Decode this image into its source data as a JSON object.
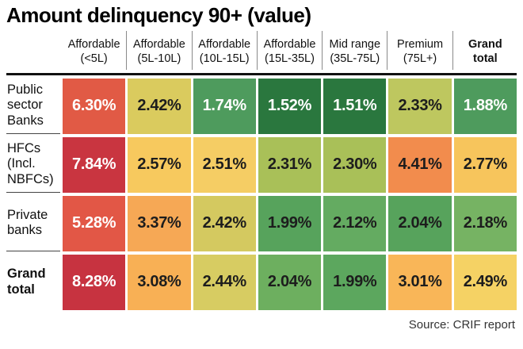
{
  "source": "Source: CRIF report",
  "chart_data": {
    "type": "heatmap",
    "title": "Amount delinquency 90+ (value)",
    "unit": "percent",
    "legend_position": "none",
    "columns": [
      {
        "line1": "Affordable",
        "line2": "(<5L)"
      },
      {
        "line1": "Affordable",
        "line2": "(5L-10L)"
      },
      {
        "line1": "Affordable",
        "line2": "(10L-15L)"
      },
      {
        "line1": "Affordable",
        "line2": "(15L-35L)"
      },
      {
        "line1": "Mid range",
        "line2": "(35L-75L)"
      },
      {
        "line1": "Premium",
        "line2": "(75L+)"
      },
      {
        "line1": "Grand",
        "line2": "total"
      }
    ],
    "rows": [
      {
        "label": "Public sector Banks",
        "values": [
          "6.30%",
          "2.42%",
          "1.74%",
          "1.52%",
          "1.51%",
          "2.33%",
          "1.88%"
        ],
        "colors": [
          "#E15A45",
          "#DACB5E",
          "#4E9B5D",
          "#2A773E",
          "#2A773E",
          "#BEC75F",
          "#4E9B5D"
        ],
        "text_colors": [
          "#ffffff",
          "#1d1d1d",
          "#ffffff",
          "#ffffff",
          "#ffffff",
          "#1d1d1d",
          "#ffffff"
        ]
      },
      {
        "label": "HFCs (Incl. NBFCs)",
        "values": [
          "7.84%",
          "2.57%",
          "2.51%",
          "2.31%",
          "2.30%",
          "4.41%",
          "2.77%"
        ],
        "colors": [
          "#C93540",
          "#F7C95E",
          "#F5CD64",
          "#A9C058",
          "#A9C058",
          "#F28C4D",
          "#F7C55C"
        ],
        "text_colors": [
          "#ffffff",
          "#1d1d1d",
          "#1d1d1d",
          "#1d1d1d",
          "#1d1d1d",
          "#1d1d1d",
          "#1d1d1d"
        ]
      },
      {
        "label": "Private banks",
        "values": [
          "5.28%",
          "3.37%",
          "2.42%",
          "1.99%",
          "2.12%",
          "2.04%",
          "2.18%"
        ],
        "colors": [
          "#E25746",
          "#F6A855",
          "#D4C960",
          "#57A35C",
          "#64AB61",
          "#57A35C",
          "#76B363"
        ],
        "text_colors": [
          "#ffffff",
          "#1d1d1d",
          "#1d1d1d",
          "#1d1d1d",
          "#1d1d1d",
          "#1d1d1d",
          "#1d1d1d"
        ]
      },
      {
        "label": "Grand total",
        "values": [
          "8.28%",
          "3.08%",
          "2.44%",
          "2.04%",
          "1.99%",
          "3.01%",
          "2.49%"
        ],
        "colors": [
          "#C73340",
          "#F8B055",
          "#D7CC62",
          "#6DAF5F",
          "#5CA75E",
          "#F9B658",
          "#F5D264"
        ],
        "text_colors": [
          "#ffffff",
          "#1d1d1d",
          "#1d1d1d",
          "#1d1d1d",
          "#1d1d1d",
          "#1d1d1d",
          "#1d1d1d"
        ]
      }
    ]
  }
}
